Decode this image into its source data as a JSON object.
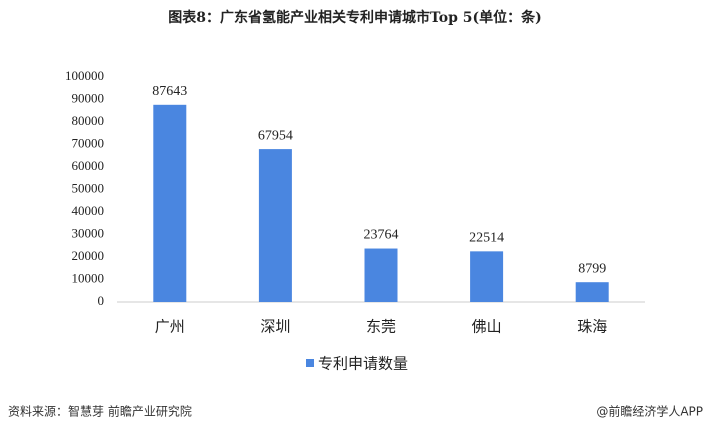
{
  "chart_data": {
    "type": "bar",
    "title": "图表8：广东省氢能产业相关专利申请城市Top 5(单位：条)",
    "categories": [
      "广州",
      "深圳",
      "东莞",
      "佛山",
      "珠海"
    ],
    "series": [
      {
        "name": "专利申请数量",
        "color": "#4a86e0",
        "values": [
          87643,
          67954,
          23764,
          22514,
          8799
        ]
      }
    ],
    "ylim": [
      0,
      100000
    ],
    "yticks": [
      0,
      10000,
      20000,
      30000,
      40000,
      50000,
      60000,
      70000,
      80000,
      90000,
      100000
    ],
    "grid": false,
    "legend": "bottom",
    "source": "资料来源：智慧芽 前瞻产业研究院",
    "credit": "@前瞻经济学人APP"
  }
}
